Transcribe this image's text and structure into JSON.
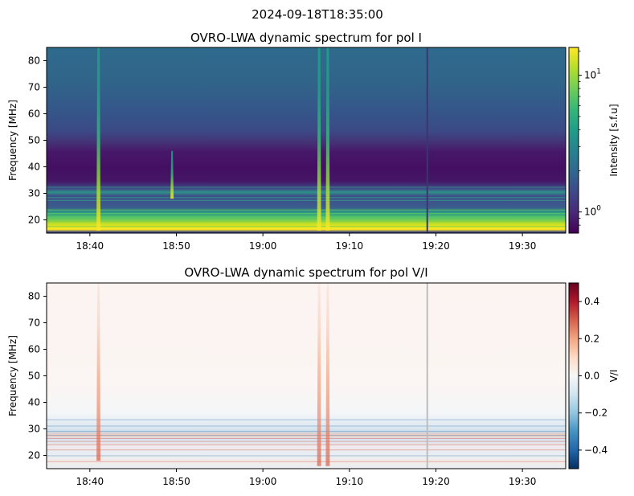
{
  "suptitle": "2024-09-18T18:35:00",
  "chart_data": [
    {
      "type": "heatmap",
      "title": "OVRO-LWA dynamic spectrum for pol I",
      "xlabel": "",
      "ylabel": "Frequency [MHz]",
      "xlim": [
        "18:35",
        "19:35"
      ],
      "ylim": [
        15,
        85
      ],
      "x_ticks": [
        "18:40",
        "18:50",
        "19:00",
        "19:10",
        "19:20",
        "19:30"
      ],
      "y_ticks": [
        20,
        30,
        40,
        50,
        60,
        70,
        80
      ],
      "colormap": "viridis",
      "colorbar": {
        "label": "Intensity [s.f.u]",
        "scale": "log",
        "range": [
          0.7,
          16
        ],
        "tick_labels": [
          "10^0",
          "10^1"
        ],
        "tick_values": [
          1,
          10
        ]
      },
      "features": [
        {
          "kind": "burst",
          "time": "18:41",
          "freq_range": [
            16,
            85
          ]
        },
        {
          "kind": "burst",
          "time": "18:49.5",
          "freq_range": [
            28,
            46
          ]
        },
        {
          "kind": "burst",
          "time": "19:06.5",
          "freq_range": [
            16,
            85
          ]
        },
        {
          "kind": "burst",
          "time": "19:07.5",
          "freq_range": [
            16,
            85
          ]
        },
        {
          "kind": "gap",
          "time": "19:19"
        }
      ]
    },
    {
      "type": "heatmap",
      "title": "OVRO-LWA dynamic spectrum for pol V/I",
      "xlabel": "",
      "ylabel": "Frequency [MHz]",
      "xlim": [
        "18:35",
        "19:35"
      ],
      "ylim": [
        15,
        85
      ],
      "x_ticks": [
        "18:40",
        "18:50",
        "19:00",
        "19:10",
        "19:20",
        "19:30"
      ],
      "y_ticks": [
        20,
        30,
        40,
        50,
        60,
        70,
        80
      ],
      "colormap": "RdBu_r",
      "colorbar": {
        "label": "V/I",
        "scale": "linear",
        "range": [
          -0.5,
          0.5
        ],
        "tick_labels": [
          "0.4",
          "0.2",
          "0.0",
          "−0.2",
          "−0.4"
        ],
        "tick_values": [
          0.4,
          0.2,
          0.0,
          -0.2,
          -0.4
        ]
      },
      "features": [
        {
          "kind": "burst",
          "time": "18:41",
          "freq_range": [
            18,
            85
          ]
        },
        {
          "kind": "burst",
          "time": "19:06.5",
          "freq_range": [
            16,
            85
          ]
        },
        {
          "kind": "burst",
          "time": "19:07.5",
          "freq_range": [
            16,
            85
          ]
        },
        {
          "kind": "gap",
          "time": "19:19"
        }
      ]
    }
  ]
}
